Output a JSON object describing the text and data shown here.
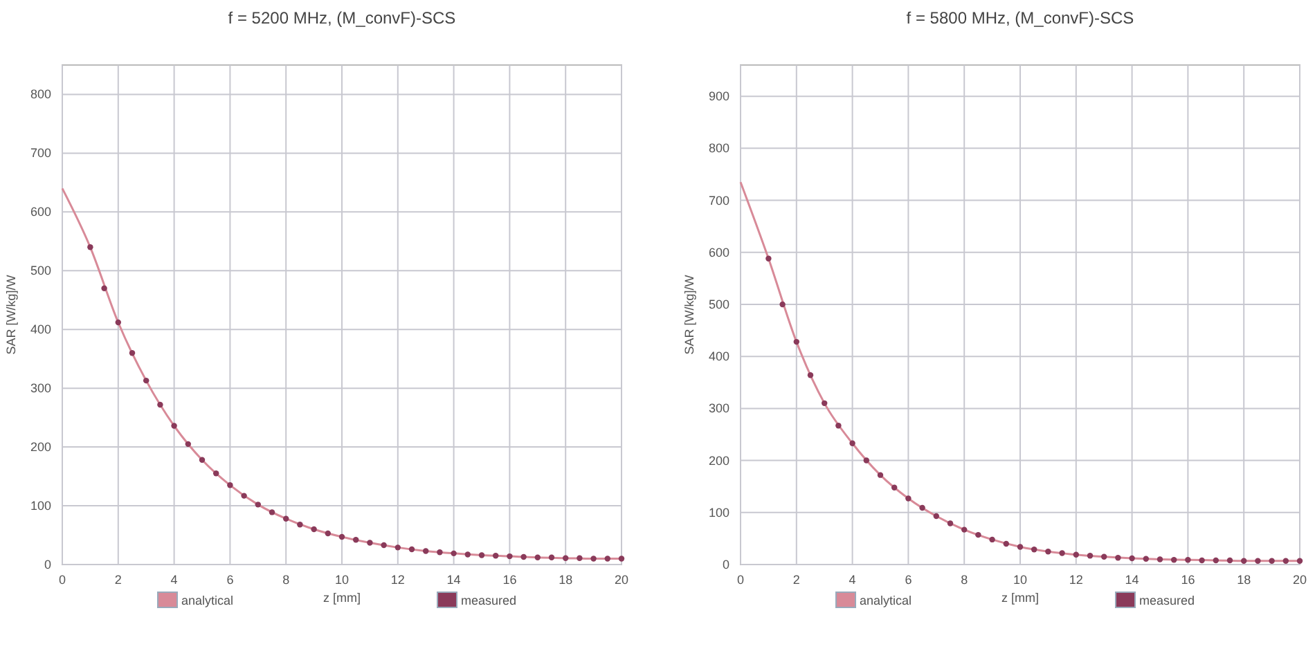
{
  "chart_data": [
    {
      "type": "line",
      "title": "f = 5200 MHz, (M_convF)-SCS",
      "xlabel": "z [mm]",
      "ylabel": "SAR [W/kg]/W",
      "xlim": [
        0,
        20
      ],
      "xticks": [
        0,
        2,
        4,
        6,
        8,
        10,
        12,
        14,
        16,
        18,
        20
      ],
      "ylim": [
        0,
        850
      ],
      "yticks": [
        0,
        100,
        200,
        300,
        400,
        500,
        600,
        700,
        800
      ],
      "grid": true,
      "legend": "bottom",
      "series": [
        {
          "name": "analytical",
          "color": "#d88a98",
          "marker": "none",
          "x": [
            0,
            1,
            2,
            3,
            4,
            5,
            6,
            7,
            8,
            9,
            10,
            11,
            12,
            13,
            14,
            15,
            16,
            17,
            18,
            19,
            20
          ],
          "values": [
            640,
            540,
            412,
            313,
            236,
            178,
            135,
            102,
            78,
            60,
            47,
            37,
            29,
            23,
            19,
            16,
            14,
            12,
            11,
            10,
            10
          ]
        },
        {
          "name": "measured",
          "type": "scatter",
          "color": "#8a3a5a",
          "marker": "circle",
          "x": [
            1,
            1.5,
            2,
            2.5,
            3,
            3.5,
            4,
            4.5,
            5,
            5.5,
            6,
            6.5,
            7,
            7.5,
            8,
            8.5,
            9,
            9.5,
            10,
            10.5,
            11,
            11.5,
            12,
            12.5,
            13,
            13.5,
            14,
            14.5,
            15,
            15.5,
            16,
            16.5,
            17,
            17.5,
            18,
            18.5,
            19,
            19.5,
            20
          ],
          "values": [
            540,
            470,
            412,
            360,
            313,
            272,
            236,
            205,
            178,
            155,
            135,
            117,
            102,
            89,
            78,
            68,
            60,
            53,
            47,
            42,
            37,
            33,
            29,
            26,
            23,
            21,
            19,
            17,
            16,
            15,
            14,
            13,
            12,
            12,
            11,
            11,
            10,
            10,
            10
          ]
        }
      ]
    },
    {
      "type": "line",
      "title": "f = 5800 MHz, (M_convF)-SCS",
      "xlabel": "z [mm]",
      "ylabel": "SAR [W/kg]/W",
      "xlim": [
        0,
        20
      ],
      "xticks": [
        0,
        2,
        4,
        6,
        8,
        10,
        12,
        14,
        16,
        18,
        20
      ],
      "ylim": [
        0,
        960
      ],
      "yticks": [
        0,
        100,
        200,
        300,
        400,
        500,
        600,
        700,
        800,
        900
      ],
      "grid": true,
      "legend": "bottom",
      "series": [
        {
          "name": "analytical",
          "color": "#d88a98",
          "marker": "none",
          "x": [
            0,
            1,
            2,
            3,
            4,
            5,
            6,
            7,
            8,
            9,
            10,
            11,
            12,
            13,
            14,
            15,
            16,
            17,
            18,
            19,
            20
          ],
          "values": [
            735,
            588,
            428,
            310,
            233,
            172,
            127,
            93,
            67,
            48,
            34,
            25,
            19,
            15,
            12,
            10,
            9,
            8,
            7,
            7,
            7
          ]
        },
        {
          "name": "measured",
          "type": "scatter",
          "color": "#8a3a5a",
          "marker": "circle",
          "x": [
            1,
            1.5,
            2,
            2.5,
            3,
            3.5,
            4,
            4.5,
            5,
            5.5,
            6,
            6.5,
            7,
            7.5,
            8,
            8.5,
            9,
            9.5,
            10,
            10.5,
            11,
            11.5,
            12,
            12.5,
            13,
            13.5,
            14,
            14.5,
            15,
            15.5,
            16,
            16.5,
            17,
            17.5,
            18,
            18.5,
            19,
            19.5,
            20
          ],
          "values": [
            588,
            500,
            428,
            364,
            310,
            267,
            233,
            200,
            172,
            148,
            127,
            109,
            93,
            79,
            67,
            57,
            48,
            40,
            34,
            29,
            25,
            22,
            19,
            17,
            15,
            13,
            12,
            11,
            10,
            9,
            9,
            8,
            8,
            8,
            7,
            7,
            7,
            7,
            7
          ]
        }
      ]
    }
  ]
}
